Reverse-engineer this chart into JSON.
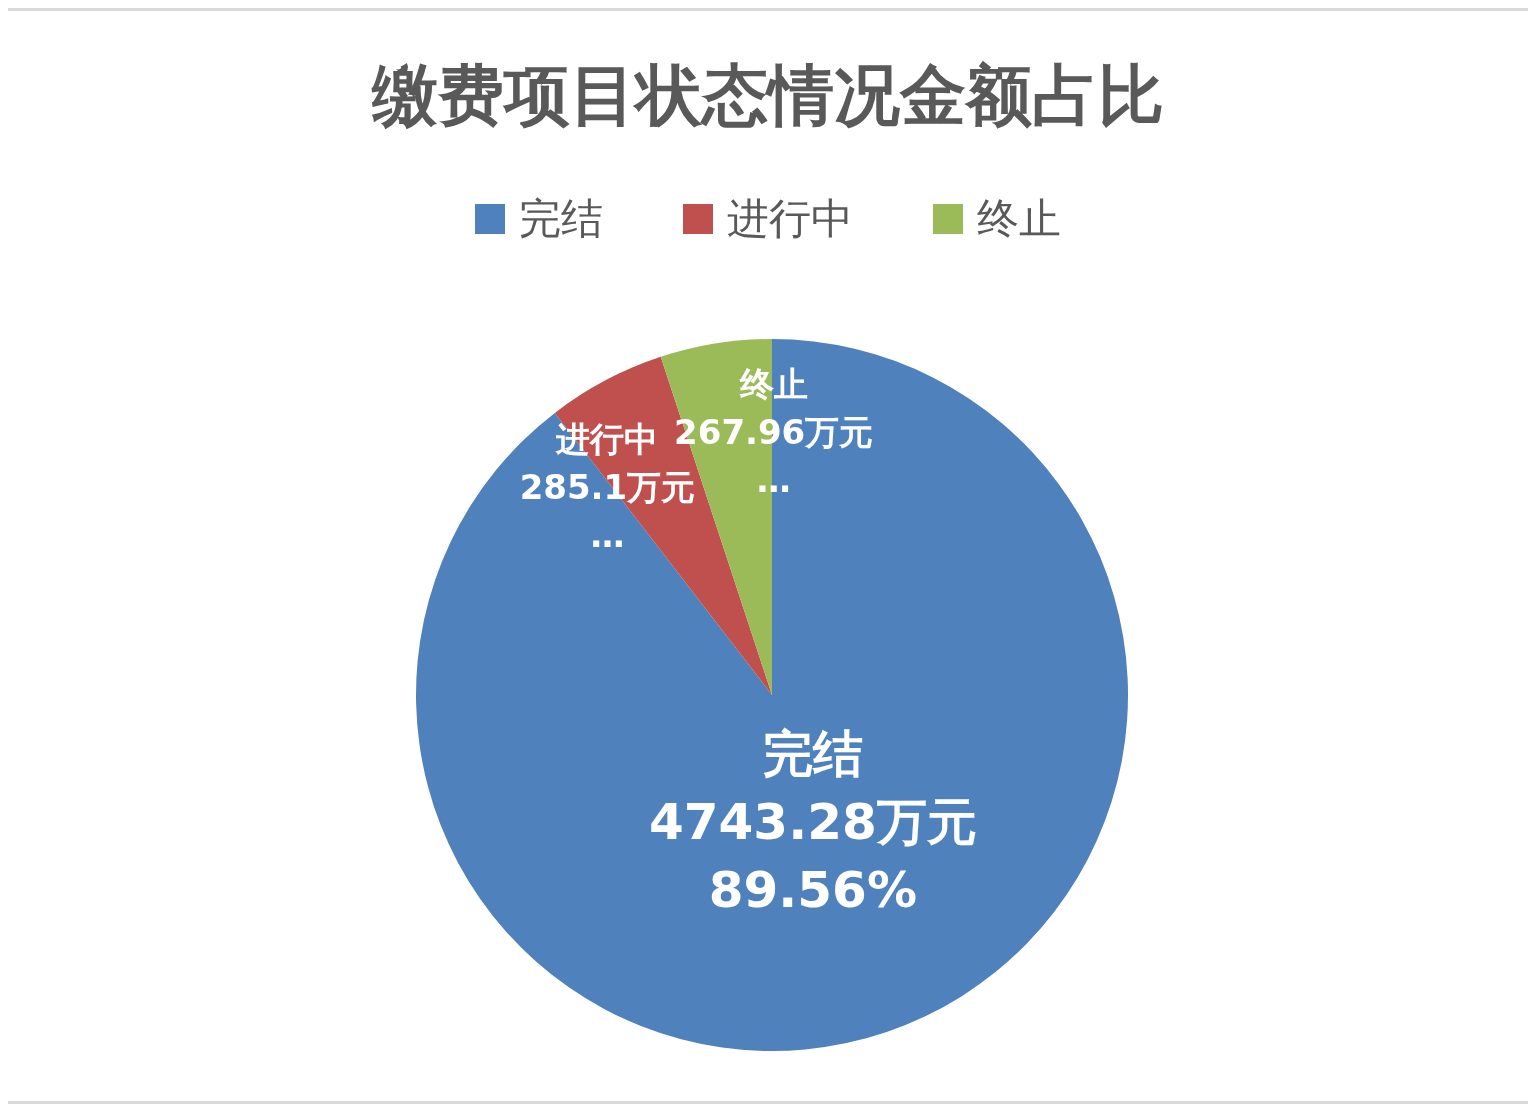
{
  "chart_data": {
    "type": "pie",
    "title": "缴费项目状态情况金额占比",
    "categories": [
      "完结",
      "进行中",
      "终止"
    ],
    "values": [
      4743.28,
      285.1,
      267.96
    ],
    "colors": [
      "#4f81bd",
      "#c0504d",
      "#9bbb59"
    ],
    "value_labels": [
      "4743.28万元\n89.56%",
      "285.1万元\n…",
      "267.96万元\n…"
    ],
    "legend": "top"
  }
}
